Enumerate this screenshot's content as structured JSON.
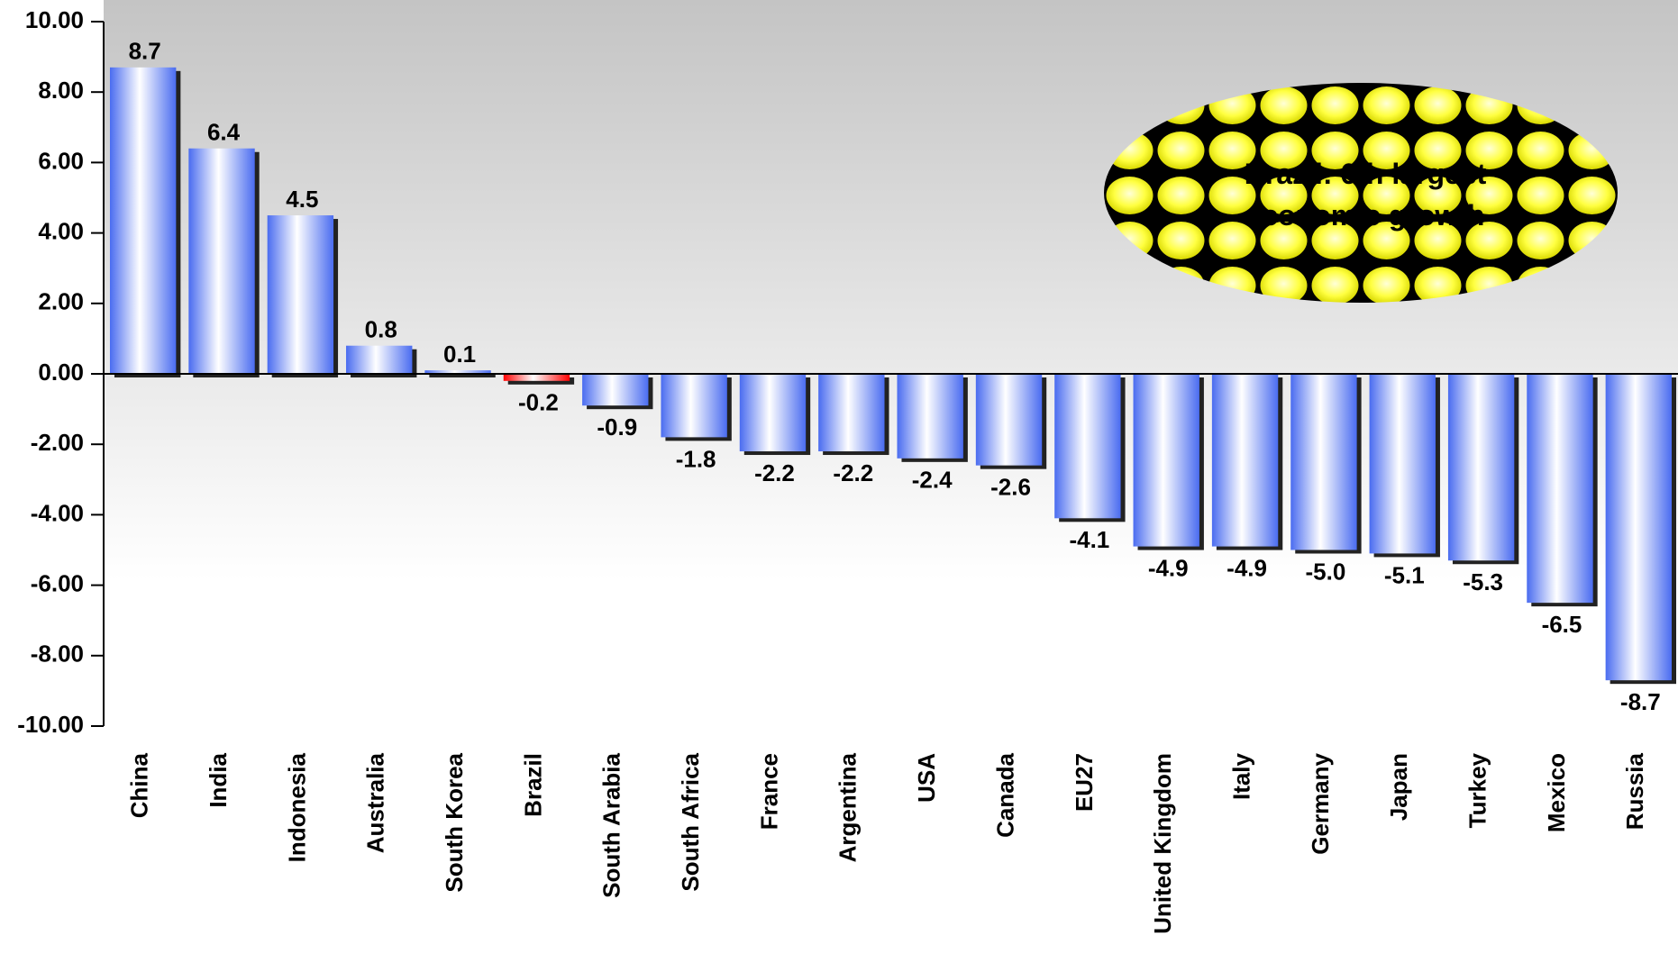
{
  "chart_data": {
    "type": "bar",
    "categories": [
      "China",
      "India",
      "Indonesia",
      "Australia",
      "South Korea",
      "Brazil",
      "South Arabia",
      "South Africa",
      "France",
      "Argentina",
      "USA",
      "Canada",
      "EU27",
      "United Kingdom",
      "Italy",
      "Germany",
      "Japan",
      "Turkey",
      "Mexico",
      "Russia"
    ],
    "values": [
      8.7,
      6.4,
      4.5,
      0.8,
      0.1,
      -0.2,
      -0.9,
      -1.8,
      -2.2,
      -2.2,
      -2.4,
      -2.6,
      -4.1,
      -4.9,
      -4.9,
      -5.0,
      -5.1,
      -5.3,
      -6.5,
      -8.7
    ],
    "value_labels": [
      "8.7",
      "6.4",
      "4.5",
      "0.8",
      "0.1",
      "-0.2",
      "-0.9",
      "-1.8",
      "-2.2",
      "-2.2",
      "-2.4",
      "-2.6",
      "-4.1",
      "-4.9",
      "-4.9",
      "-5.0",
      "-5.1",
      "-5.3",
      "-6.5",
      "-8.7"
    ],
    "colors": [
      "#4a6cf0",
      "#4a6cf0",
      "#4a6cf0",
      "#4a6cf0",
      "#4a6cf0",
      "#ff0000",
      "#4a6cf0",
      "#4a6cf0",
      "#4a6cf0",
      "#4a6cf0",
      "#4a6cf0",
      "#4a6cf0",
      "#4a6cf0",
      "#4a6cf0",
      "#4a6cf0",
      "#4a6cf0",
      "#4a6cf0",
      "#4a6cf0",
      "#4a6cf0",
      "#4a6cf0"
    ],
    "ylim": [
      -10,
      10
    ],
    "yticks": [
      {
        "value": -10,
        "label": "-10.00"
      },
      {
        "value": -8,
        "label": "-8.00"
      },
      {
        "value": -6,
        "label": "-6.00"
      },
      {
        "value": -4,
        "label": "-4.00"
      },
      {
        "value": -2,
        "label": "-2.00"
      },
      {
        "value": 0,
        "label": "0.00"
      },
      {
        "value": 2,
        "label": "2.00"
      },
      {
        "value": 4,
        "label": "4.00"
      },
      {
        "value": 6,
        "label": "6.00"
      },
      {
        "value": 8,
        "label": "8.00"
      },
      {
        "value": 10,
        "label": "10.00"
      }
    ],
    "annotation": [
      "Brazil: 6th  largest",
      "economic growth"
    ]
  }
}
